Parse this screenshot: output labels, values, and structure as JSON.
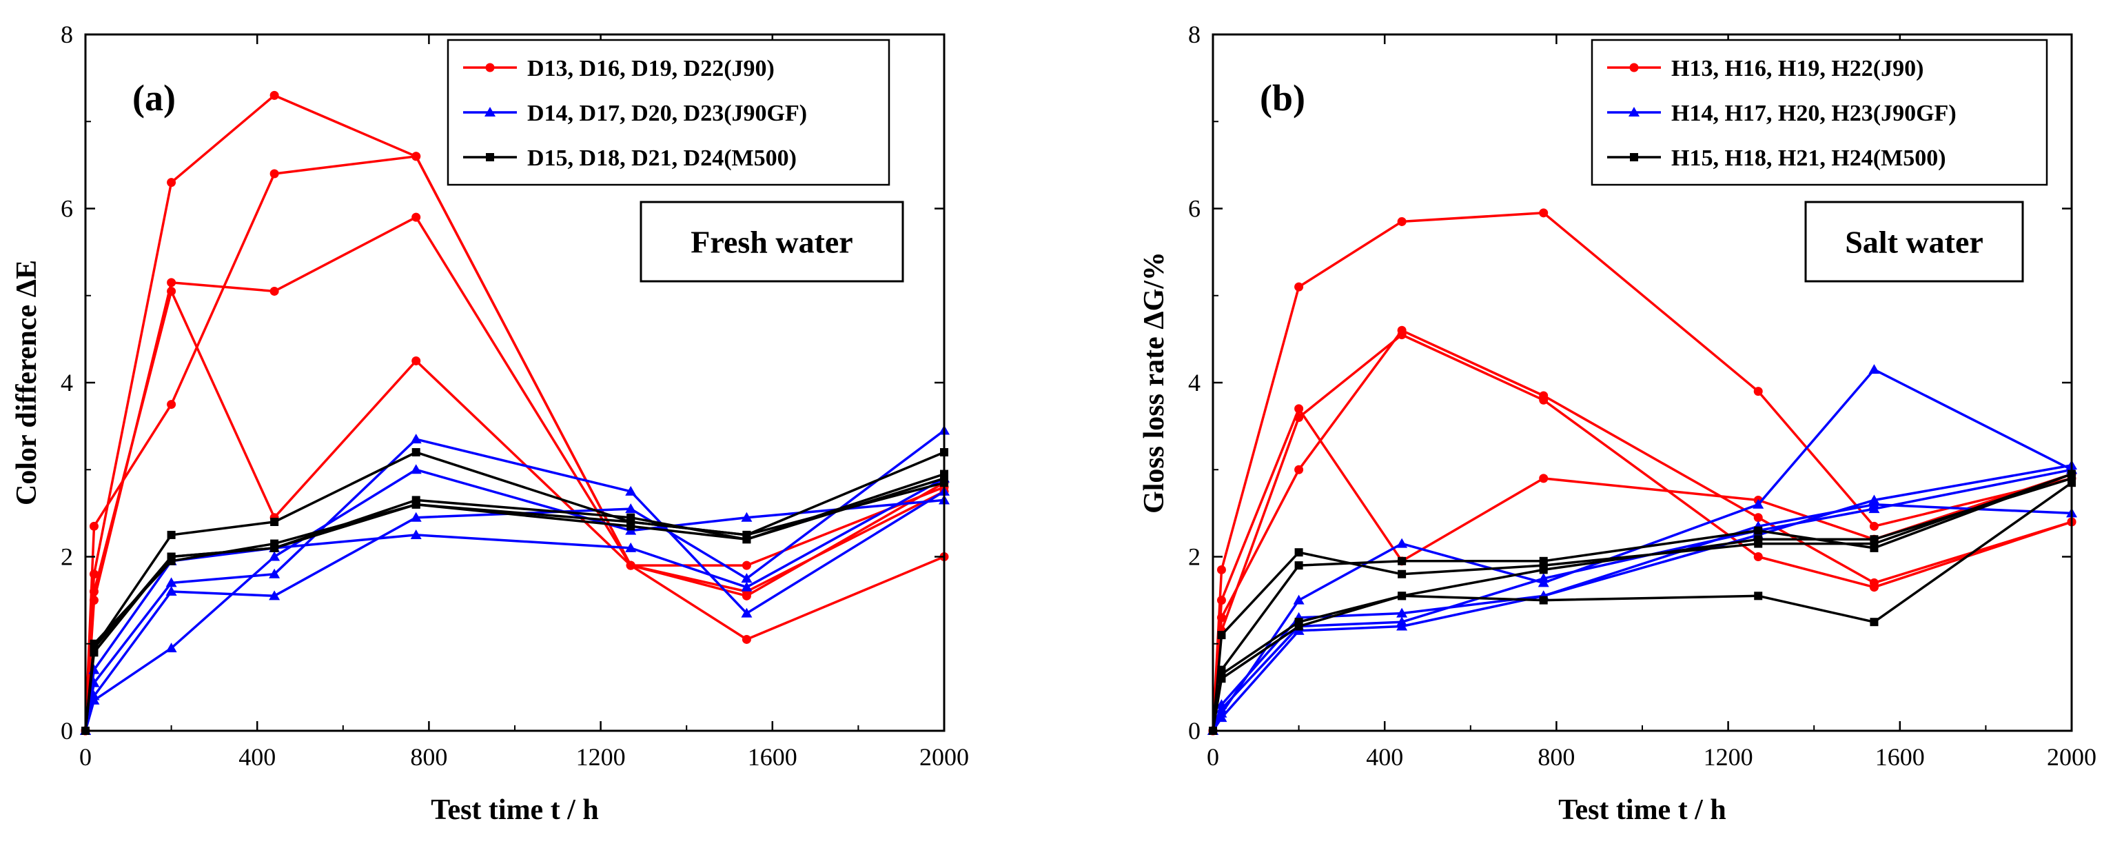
{
  "chart_data": [
    {
      "type": "line",
      "panel_label": "(a)",
      "annotation": "Fresh water",
      "xlabel": "Test time t / h",
      "ylabel": "Color difference ΔE",
      "xlim": [
        0,
        2000
      ],
      "ylim": [
        0,
        8
      ],
      "xticks": [
        "0",
        "400",
        "800",
        "1200",
        "1600",
        "2000"
      ],
      "yticks": [
        "0",
        "2",
        "4",
        "6",
        "8"
      ],
      "legend_position": "top-right",
      "legend": [
        {
          "label": "D13, D16, D19, D22(J90)",
          "color": "#ff0000",
          "marker": "circle"
        },
        {
          "label": "D14, D17, D20, D23(J90GF)",
          "color": "#0000ff",
          "marker": "triangle"
        },
        {
          "label": "D15, D18, D21, D24(M500)",
          "color": "#000000",
          "marker": "square"
        }
      ],
      "series": [
        {
          "name": "D13",
          "group": 0,
          "x": [
            0,
            20,
            200,
            440,
            770,
            1270,
            1540,
            2000
          ],
          "y": [
            0,
            1.8,
            6.3,
            7.3,
            6.6,
            1.9,
            1.9,
            2.8
          ]
        },
        {
          "name": "D16",
          "group": 0,
          "x": [
            0,
            20,
            200,
            440,
            770,
            1270,
            1540,
            2000
          ],
          "y": [
            0,
            2.35,
            3.75,
            6.4,
            6.6,
            1.9,
            1.55,
            2.85
          ]
        },
        {
          "name": "D19",
          "group": 0,
          "x": [
            0,
            20,
            200,
            440,
            770,
            1270,
            1540,
            2000
          ],
          "y": [
            0,
            1.5,
            5.15,
            5.05,
            5.9,
            1.9,
            1.6,
            2.75
          ]
        },
        {
          "name": "D22",
          "group": 0,
          "x": [
            0,
            20,
            200,
            440,
            770,
            1270,
            1540,
            2000
          ],
          "y": [
            0,
            1.6,
            5.05,
            2.45,
            4.25,
            1.9,
            1.05,
            2.0
          ]
        },
        {
          "name": "D14",
          "group": 1,
          "x": [
            0,
            20,
            200,
            440,
            770,
            1270,
            1540,
            2000
          ],
          "y": [
            0,
            0.55,
            1.7,
            1.8,
            3.35,
            2.75,
            1.35,
            2.75
          ]
        },
        {
          "name": "D17",
          "group": 1,
          "x": [
            0,
            20,
            200,
            440,
            770,
            1270,
            1540,
            2000
          ],
          "y": [
            0,
            0.4,
            1.6,
            1.55,
            2.45,
            2.55,
            1.75,
            3.45
          ]
        },
        {
          "name": "D20",
          "group": 1,
          "x": [
            0,
            20,
            200,
            440,
            770,
            1270,
            1540,
            2000
          ],
          "y": [
            0,
            0.35,
            0.95,
            2.0,
            3.0,
            2.3,
            2.45,
            2.65
          ]
        },
        {
          "name": "D23",
          "group": 1,
          "x": [
            0,
            20,
            200,
            440,
            770,
            1270,
            1540,
            2000
          ],
          "y": [
            0,
            0.7,
            1.95,
            2.1,
            2.25,
            2.1,
            1.65,
            2.9
          ]
        },
        {
          "name": "D15",
          "group": 2,
          "x": [
            0,
            20,
            200,
            440,
            770,
            1270,
            1540,
            2000
          ],
          "y": [
            0,
            0.95,
            2.25,
            2.4,
            3.2,
            2.4,
            2.25,
            3.2
          ]
        },
        {
          "name": "D18",
          "group": 2,
          "x": [
            0,
            20,
            200,
            440,
            770,
            1270,
            1540,
            2000
          ],
          "y": [
            0,
            0.95,
            2.0,
            2.1,
            2.65,
            2.45,
            2.2,
            2.9
          ]
        },
        {
          "name": "D21",
          "group": 2,
          "x": [
            0,
            20,
            200,
            440,
            770,
            1270,
            1540,
            2000
          ],
          "y": [
            0,
            1.0,
            1.95,
            2.15,
            2.6,
            2.4,
            2.25,
            2.85
          ]
        },
        {
          "name": "D24",
          "group": 2,
          "x": [
            0,
            20,
            200,
            440,
            770,
            1270,
            1540,
            2000
          ],
          "y": [
            0,
            0.9,
            2.0,
            2.1,
            2.6,
            2.35,
            2.2,
            2.95
          ]
        }
      ]
    },
    {
      "type": "line",
      "panel_label": "(b)",
      "annotation": "Salt water",
      "xlabel": "Test time t / h",
      "ylabel": "Gloss loss rate ΔG/%",
      "xlim": [
        0,
        2000
      ],
      "ylim": [
        0,
        8
      ],
      "xticks": [
        "0",
        "400",
        "800",
        "1200",
        "1600",
        "2000"
      ],
      "yticks": [
        "0",
        "2",
        "4",
        "6",
        "8"
      ],
      "legend_position": "top-right",
      "legend": [
        {
          "label": "H13, H16, H19, H22(J90)",
          "color": "#ff0000",
          "marker": "circle"
        },
        {
          "label": "H14, H17, H20, H23(J90GF)",
          "color": "#0000ff",
          "marker": "triangle"
        },
        {
          "label": "H15, H18, H21, H24(M500)",
          "color": "#000000",
          "marker": "square"
        }
      ],
      "series": [
        {
          "name": "H13",
          "group": 0,
          "x": [
            0,
            20,
            200,
            440,
            770,
            1270,
            1540,
            2000
          ],
          "y": [
            0,
            1.85,
            5.1,
            5.85,
            5.95,
            3.9,
            2.35,
            2.9
          ]
        },
        {
          "name": "H16",
          "group": 0,
          "x": [
            0,
            20,
            200,
            440,
            770,
            1270,
            1540,
            2000
          ],
          "y": [
            0,
            1.5,
            3.7,
            1.95,
            2.9,
            2.65,
            2.2,
            2.95
          ]
        },
        {
          "name": "H19",
          "group": 0,
          "x": [
            0,
            20,
            200,
            440,
            770,
            1270,
            1540,
            2000
          ],
          "y": [
            0,
            1.3,
            3.0,
            4.6,
            3.85,
            2.45,
            1.7,
            2.4
          ]
        },
        {
          "name": "H22",
          "group": 0,
          "x": [
            0,
            20,
            200,
            440,
            770,
            1270,
            1540,
            2000
          ],
          "y": [
            0,
            1.15,
            3.6,
            4.55,
            3.8,
            2.0,
            1.65,
            2.4
          ]
        },
        {
          "name": "H14",
          "group": 1,
          "x": [
            0,
            20,
            200,
            440,
            770,
            1270,
            1540,
            2000
          ],
          "y": [
            0,
            0.2,
            1.5,
            2.15,
            1.7,
            2.6,
            4.15,
            3.0
          ]
        },
        {
          "name": "H17",
          "group": 1,
          "x": [
            0,
            20,
            200,
            440,
            770,
            1270,
            1540,
            2000
          ],
          "y": [
            0,
            0.3,
            1.3,
            1.35,
            1.55,
            2.35,
            2.6,
            2.5
          ]
        },
        {
          "name": "H20",
          "group": 1,
          "x": [
            0,
            20,
            200,
            440,
            770,
            1270,
            1540,
            2000
          ],
          "y": [
            0,
            0.25,
            1.2,
            1.25,
            1.75,
            2.3,
            2.55,
            3.0
          ]
        },
        {
          "name": "H23",
          "group": 1,
          "x": [
            0,
            20,
            200,
            440,
            770,
            1270,
            1540,
            2000
          ],
          "y": [
            0,
            0.15,
            1.15,
            1.2,
            1.55,
            2.25,
            2.65,
            3.05
          ]
        },
        {
          "name": "H15",
          "group": 2,
          "x": [
            0,
            20,
            200,
            440,
            770,
            1270,
            1540,
            2000
          ],
          "y": [
            0,
            1.1,
            2.05,
            1.8,
            1.9,
            2.15,
            2.15,
            2.95
          ]
        },
        {
          "name": "H18",
          "group": 2,
          "x": [
            0,
            20,
            200,
            440,
            770,
            1270,
            1540,
            2000
          ],
          "y": [
            0,
            0.65,
            1.25,
            1.55,
            1.5,
            1.55,
            1.25,
            2.85
          ]
        },
        {
          "name": "H21",
          "group": 2,
          "x": [
            0,
            20,
            200,
            440,
            770,
            1270,
            1540,
            2000
          ],
          "y": [
            0,
            0.7,
            1.9,
            1.95,
            1.95,
            2.3,
            2.1,
            2.95
          ]
        },
        {
          "name": "H24",
          "group": 2,
          "x": [
            0,
            20,
            200,
            440,
            770,
            1270,
            1540,
            2000
          ],
          "y": [
            0,
            0.6,
            1.2,
            1.55,
            1.85,
            2.2,
            2.2,
            2.9
          ]
        }
      ]
    }
  ]
}
